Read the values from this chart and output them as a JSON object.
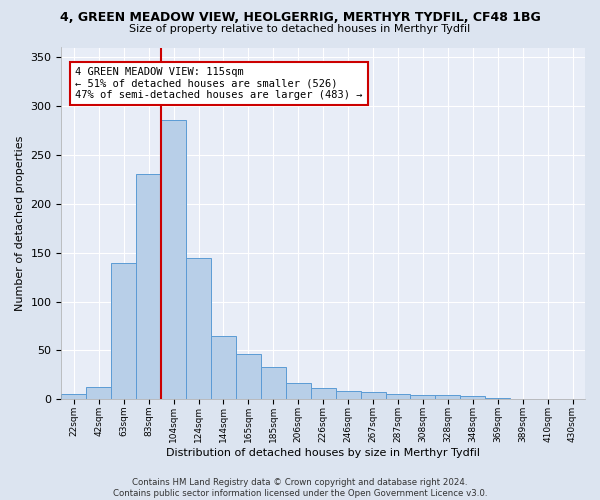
{
  "title": "4, GREEN MEADOW VIEW, HEOLGERRIG, MERTHYR TYDFIL, CF48 1BG",
  "subtitle": "Size of property relative to detached houses in Merthyr Tydfil",
  "xlabel": "Distribution of detached houses by size in Merthyr Tydfil",
  "ylabel": "Number of detached properties",
  "bar_values": [
    5,
    13,
    139,
    231,
    286,
    145,
    65,
    46,
    33,
    17,
    12,
    9,
    7,
    5,
    4,
    4,
    3,
    1,
    0,
    0,
    0
  ],
  "xtick_labels": [
    "22sqm",
    "42sqm",
    "63sqm",
    "83sqm",
    "104sqm",
    "124sqm",
    "144sqm",
    "165sqm",
    "185sqm",
    "206sqm",
    "226sqm",
    "246sqm",
    "267sqm",
    "287sqm",
    "308sqm",
    "328sqm",
    "348sqm",
    "369sqm",
    "389sqm",
    "410sqm",
    "430sqm"
  ],
  "bar_color": "#b8cfe8",
  "bar_edge_color": "#5b9bd5",
  "vline_pos": 4.0,
  "vline_color": "#cc0000",
  "ylim": [
    0,
    360
  ],
  "yticks": [
    0,
    50,
    100,
    150,
    200,
    250,
    300,
    350
  ],
  "annotation_text": "4 GREEN MEADOW VIEW: 115sqm\n← 51% of detached houses are smaller (526)\n47% of semi-detached houses are larger (483) →",
  "footer": "Contains HM Land Registry data © Crown copyright and database right 2024.\nContains public sector information licensed under the Open Government Licence v3.0.",
  "bg_color": "#dce4f0",
  "plot_bg_color": "#e8edf7"
}
